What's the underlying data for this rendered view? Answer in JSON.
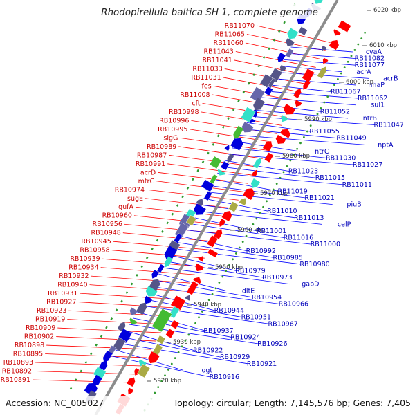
{
  "title": "Rhodopirellula baltica SH 1, complete genome",
  "accession": "Accession: NC_005027",
  "summary": "Topology: circular; Length: 7,145,576 bp; Genes: 7,405",
  "colors": {
    "axis": "#8c8c8c",
    "ruler_ticks": "#2e9a2e",
    "left_genes": "#ff0000",
    "left_labels": "#cc0000",
    "right_genes": "#0000dd",
    "right_labels": "#0000bb",
    "leader_left": "#ff0000",
    "leader_right": "#0000ff",
    "accent_cyan": "#33e0c8",
    "accent_green": "#44bb33",
    "accent_slate": "#555588",
    "accent_olive": "#aaaa44",
    "accent_orange": "#ff9900"
  },
  "scale_labels": [
    "6020 kbp",
    "6010 kbp",
    "6000 kbp",
    "5990 kbp",
    "5980 kbp",
    "5970 kbp",
    "5960 kbp",
    "5950 kbp",
    "5940 kbp",
    "5930 kbp",
    "5920 kbp"
  ],
  "left_labels": [
    "RB11070",
    "RB11065",
    "RB11060",
    "RB11043",
    "RB11041",
    "RB11033",
    "RB11031",
    "fes",
    "RB11008",
    "cft",
    "RB10998",
    "RB10996",
    "RB10995",
    "sigG",
    "RB10989",
    "RB10987",
    "RB10991",
    "acrD",
    "mtrC",
    "RB10974",
    "sugE",
    "gufA",
    "RB10960",
    "RB10956",
    "RB10948",
    "RB10945",
    "RB10958",
    "RB10939",
    "RB10934",
    "RB10932",
    "RB10940",
    "RB10931",
    "RB10927",
    "RB10923",
    "RB10919",
    "RB10909",
    "RB10902",
    "RB10898",
    "RB10895",
    "RB10893",
    "RB10892",
    "RB10891"
  ],
  "right_labels": [
    "cyaA",
    "RB11082",
    "RB11077",
    "acrA",
    "acrB",
    "nhaP",
    "RB11067",
    "RB11062",
    "sul1",
    "RB11052",
    "ntrB",
    "RB11047",
    "RB11055",
    "RB11049",
    "nptA",
    "ntrC",
    "RB11030",
    "RB11027",
    "RB11023",
    "RB11015",
    "RB11011",
    "RB11019",
    "RB11021",
    "piuB",
    "RB11010",
    "RB11013",
    "celP",
    "RB11001",
    "RB11016",
    "RB11000",
    "RB10992",
    "RB10985",
    "RB10980",
    "RB10979",
    "RB10973",
    "gabD",
    "dltE",
    "RB10954",
    "RB10966",
    "RB10944",
    "RB10951",
    "RB10967",
    "RB10937",
    "RB10924",
    "RB10926",
    "RB10922",
    "RB10929",
    "RB10921",
    "ogt",
    "RB10916"
  ]
}
